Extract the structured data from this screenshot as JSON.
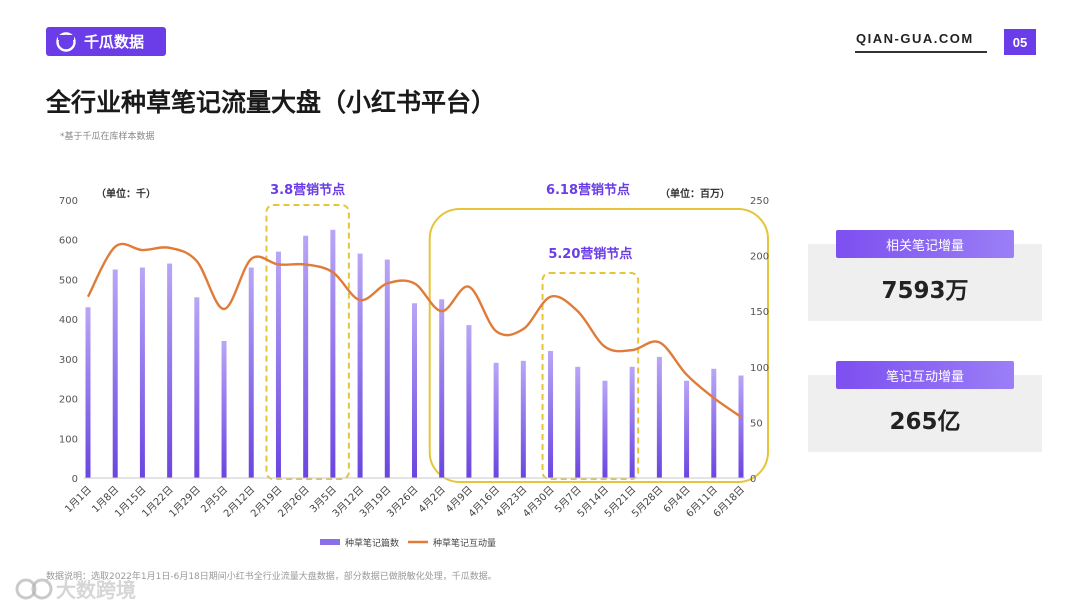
{
  "header": {
    "brand": "千瓜数据",
    "site": "QIAN-GUA.COM",
    "page_number": "05"
  },
  "title": "全行业种草笔记流量大盘（小红书平台）",
  "subnote": "*基于千瓜在库样本数据",
  "source_note": "数据说明：选取2022年1月1日-6月18日期间小红书全行业流量大盘数据，部分数据已做脱敏化处理，千瓜数据。",
  "footer_brand": "大数跨境",
  "stats": [
    {
      "label": "相关笔记增量",
      "value": "7593万"
    },
    {
      "label": "笔记互动增量",
      "value": "265亿"
    }
  ],
  "colors": {
    "accent": "#6a3de8",
    "bar": "#8b6fe8",
    "line": "#e07b39",
    "highlight": "#e5c53a"
  },
  "chart_data": {
    "type": "bar",
    "categories": [
      "1月1日",
      "1月8日",
      "1月15日",
      "1月22日",
      "1月29日",
      "2月5日",
      "2月12日",
      "2月19日",
      "2月26日",
      "3月5日",
      "3月12日",
      "3月19日",
      "3月26日",
      "4月2日",
      "4月9日",
      "4月16日",
      "4月23日",
      "4月30日",
      "5月7日",
      "5月14日",
      "5月21日",
      "5月28日",
      "6月4日",
      "6月11日",
      "6月18日"
    ],
    "series": [
      {
        "name": "种草笔记篇数",
        "type": "bar",
        "axis": "left",
        "values": [
          430,
          525,
          530,
          540,
          455,
          345,
          530,
          570,
          610,
          625,
          565,
          550,
          440,
          450,
          385,
          290,
          295,
          320,
          280,
          245,
          280,
          305,
          245,
          275,
          258
        ]
      },
      {
        "name": "种草笔记互动量",
        "type": "line",
        "axis": "right",
        "values": [
          163,
          208,
          205,
          207,
          195,
          152,
          197,
          192,
          192,
          185,
          160,
          175,
          175,
          150,
          172,
          132,
          134,
          163,
          150,
          118,
          115,
          122,
          93,
          72,
          55
        ]
      }
    ],
    "left_axis": {
      "unit": "（单位：千）",
      "min": 0,
      "max": 700,
      "ticks": [
        0,
        100,
        200,
        300,
        400,
        500,
        600,
        700
      ]
    },
    "right_axis": {
      "unit": "（单位：百万）",
      "min": 0,
      "max": 250,
      "ticks": [
        0,
        50,
        100,
        150,
        200,
        250
      ]
    },
    "annotations": [
      {
        "label": "3.8营销节点",
        "from": "2月19日",
        "to": "3月5日"
      },
      {
        "label": "6.18营销节点",
        "from": "4月2日",
        "to": "6月18日"
      },
      {
        "label": "5.20营销节点",
        "from": "4月30日",
        "to": "5月21日"
      }
    ],
    "legend_position": "bottom",
    "grid": false
  }
}
